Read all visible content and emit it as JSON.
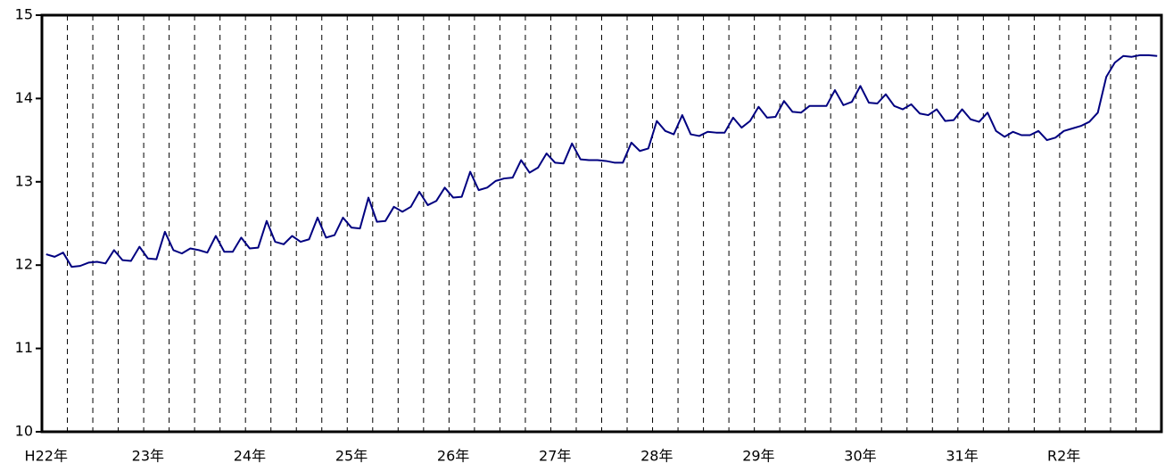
{
  "chart_data": {
    "type": "line",
    "categories": [
      "H22年",
      null,
      null,
      null,
      null,
      null,
      null,
      null,
      null,
      null,
      null,
      null,
      "23年",
      null,
      null,
      null,
      null,
      null,
      null,
      null,
      null,
      null,
      null,
      null,
      "24年",
      null,
      null,
      null,
      null,
      null,
      null,
      null,
      null,
      null,
      null,
      null,
      "25年",
      null,
      null,
      null,
      null,
      null,
      null,
      null,
      null,
      null,
      null,
      null,
      "26年",
      null,
      null,
      null,
      null,
      null,
      null,
      null,
      null,
      null,
      null,
      null,
      "27年",
      null,
      null,
      null,
      null,
      null,
      null,
      null,
      null,
      null,
      null,
      null,
      "28年",
      null,
      null,
      null,
      null,
      null,
      null,
      null,
      null,
      null,
      null,
      null,
      "29年",
      null,
      null,
      null,
      null,
      null,
      null,
      null,
      null,
      null,
      null,
      null,
      "30年",
      null,
      null,
      null,
      null,
      null,
      null,
      null,
      null,
      null,
      null,
      null,
      "31年",
      null,
      null,
      null,
      null,
      null,
      null,
      null,
      null,
      null,
      null,
      null,
      "R2年",
      null,
      null,
      null,
      null,
      null,
      null,
      null,
      null,
      null,
      null,
      null
    ],
    "series": [
      {
        "color": "#000080",
        "values": [
          12.13,
          12.1,
          12.15,
          11.98,
          11.99,
          12.03,
          12.04,
          12.02,
          12.18,
          12.06,
          12.05,
          12.22,
          12.08,
          12.07,
          12.4,
          12.18,
          12.14,
          12.2,
          12.18,
          12.15,
          12.35,
          12.16,
          12.16,
          12.33,
          12.2,
          12.21,
          12.53,
          12.28,
          12.25,
          12.35,
          12.28,
          12.31,
          12.57,
          12.33,
          12.36,
          12.57,
          12.45,
          12.44,
          12.81,
          12.52,
          12.53,
          12.7,
          12.64,
          12.7,
          12.88,
          12.72,
          12.77,
          12.93,
          12.81,
          12.82,
          13.12,
          12.9,
          12.93,
          13.01,
          13.04,
          13.05,
          13.26,
          13.11,
          13.17,
          13.34,
          13.23,
          13.22,
          13.46,
          13.27,
          13.26,
          13.26,
          13.25,
          13.23,
          13.23,
          13.47,
          13.37,
          13.4,
          13.73,
          13.61,
          13.57,
          13.8,
          13.57,
          13.55,
          13.6,
          13.59,
          13.59,
          13.77,
          13.65,
          13.73,
          13.9,
          13.77,
          13.78,
          13.97,
          13.84,
          13.83,
          13.91,
          13.91,
          13.91,
          14.1,
          13.92,
          13.96,
          14.15,
          13.95,
          13.94,
          14.05,
          13.91,
          13.87,
          13.93,
          13.82,
          13.8,
          13.87,
          13.73,
          13.74,
          13.87,
          13.75,
          13.72,
          13.83,
          13.61,
          13.54,
          13.6,
          13.56,
          13.56,
          13.61,
          13.5,
          13.53,
          13.61,
          13.64,
          13.67,
          13.72,
          13.83,
          14.26,
          14.43,
          14.51,
          14.5,
          14.52,
          14.52,
          14.51
        ]
      }
    ],
    "ylim": [
      10,
      15
    ],
    "yticks": [
      10,
      11,
      12,
      13,
      14,
      15
    ]
  }
}
